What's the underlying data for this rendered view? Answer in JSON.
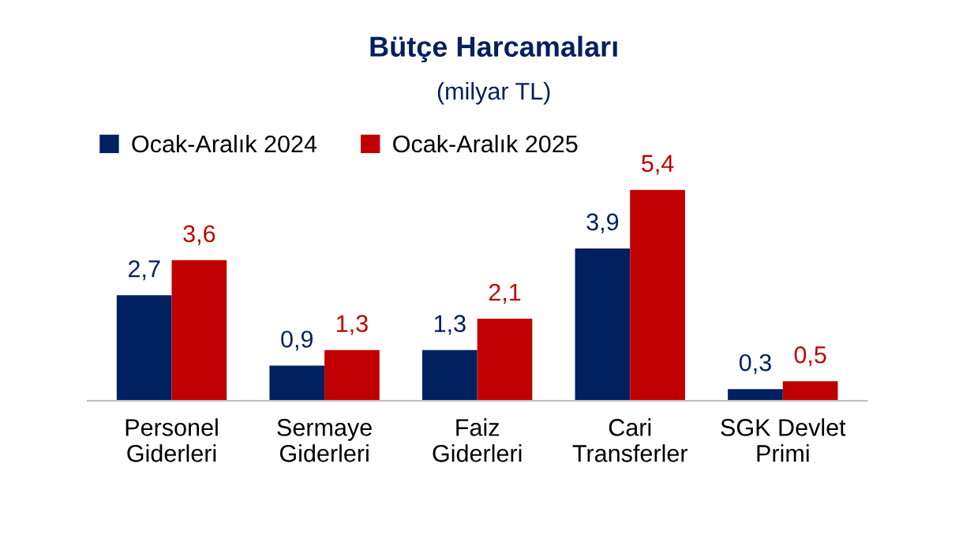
{
  "chart_data": {
    "type": "bar",
    "title": "Bütçe Harcamaları",
    "subtitle": "(milyar TL)",
    "categories": [
      "Personel\nGiderleri",
      "Sermaye\nGiderleri",
      "Faiz\nGiderleri",
      "Cari\nTransferler",
      "SGK Devlet\nPrimi"
    ],
    "series": [
      {
        "name": "Ocak-Aralık 2024",
        "color": "#002060",
        "values": [
          2.7,
          0.9,
          1.3,
          3.9,
          0.3
        ],
        "value_labels": [
          "2,7",
          "0,9",
          "1,3",
          "3,9",
          "0,3"
        ]
      },
      {
        "name": "Ocak-Aralık 2025",
        "color": "#c00000",
        "values": [
          3.6,
          1.3,
          2.1,
          5.4,
          0.5
        ],
        "value_labels": [
          "3,6",
          "1,3",
          "2,1",
          "5,4",
          "0,5"
        ]
      }
    ],
    "legend": "top left",
    "grid": false
  }
}
